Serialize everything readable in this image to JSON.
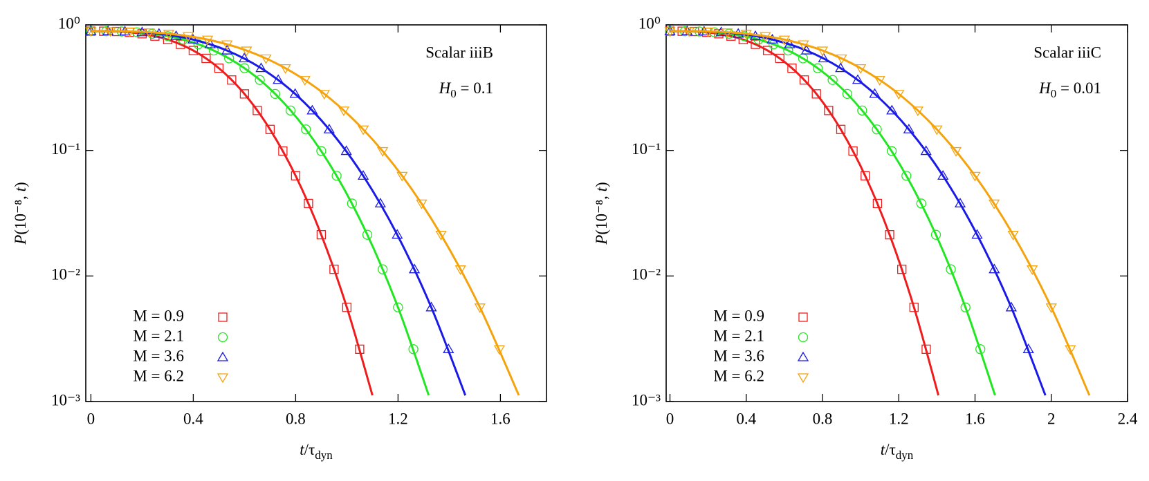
{
  "chart_data": [
    {
      "type": "scatter",
      "annotation": "Scalar iiiB",
      "annotation2": [
        "H",
        "0",
        " = 0.1"
      ],
      "xlabel": [
        "t",
        "/τ",
        "dyn"
      ],
      "ylabel": [
        "P",
        "(10⁻⁸, ",
        "t",
        ")"
      ],
      "xlim": [
        -0.02,
        1.78
      ],
      "ylim": [
        0.001,
        1
      ],
      "log_y": true,
      "legend": "lower left",
      "xticks": [
        0,
        0.4,
        0.8,
        1.2,
        1.6
      ],
      "yticks": [
        {
          "value": 1,
          "label": "10⁰"
        },
        {
          "value": 0.1,
          "label": "10⁻¹"
        },
        {
          "value": 0.01,
          "label": "10⁻²"
        },
        {
          "value": 0.001,
          "label": "10⁻³"
        }
      ],
      "series": [
        {
          "name": "M = 0.9",
          "color": "#ee1c1c",
          "marker": "square",
          "x": [
            0,
            0.05,
            0.1,
            0.15,
            0.2,
            0.25,
            0.3,
            0.35,
            0.4,
            0.45,
            0.5,
            0.55,
            0.6,
            0.65,
            0.7,
            0.75,
            0.8,
            0.85,
            0.9,
            0.95,
            1.0,
            1.05
          ],
          "values": [
            0.891,
            0.89,
            0.886,
            0.873,
            0.85,
            0.814,
            0.764,
            0.7,
            0.625,
            0.541,
            0.452,
            0.364,
            0.282,
            0.208,
            0.147,
            0.0989,
            0.0628,
            0.0378,
            0.0213,
            0.0113,
            0.00562,
            0.00261
          ],
          "fit_x": [
            0,
            0.1,
            0.2,
            0.3,
            0.4,
            0.5,
            0.6,
            0.7,
            0.8,
            0.9,
            1.0,
            1.1
          ],
          "fit_values": [
            0.891,
            0.886,
            0.85,
            0.764,
            0.625,
            0.452,
            0.282,
            0.147,
            0.0628,
            0.0213,
            0.00562,
            0.00112
          ]
        },
        {
          "name": "M = 2.1",
          "color": "#22e622",
          "marker": "circle",
          "x": [
            0,
            0.06,
            0.12,
            0.18,
            0.24,
            0.3,
            0.36,
            0.42,
            0.48,
            0.54,
            0.6,
            0.66,
            0.72,
            0.78,
            0.84,
            0.9,
            0.96,
            1.02,
            1.08,
            1.14,
            1.2,
            1.26
          ],
          "values": [
            0.891,
            0.89,
            0.886,
            0.873,
            0.85,
            0.814,
            0.764,
            0.7,
            0.625,
            0.541,
            0.452,
            0.364,
            0.282,
            0.208,
            0.147,
            0.0989,
            0.0628,
            0.0378,
            0.0213,
            0.0113,
            0.00562,
            0.00261
          ],
          "fit_x": [
            0,
            0.12,
            0.24,
            0.36,
            0.48,
            0.6,
            0.72,
            0.84,
            0.96,
            1.08,
            1.2,
            1.32
          ],
          "fit_values": [
            0.891,
            0.886,
            0.85,
            0.764,
            0.625,
            0.452,
            0.282,
            0.147,
            0.0628,
            0.0213,
            0.00562,
            0.00112
          ]
        },
        {
          "name": "M = 3.6",
          "color": "#1a1ae6",
          "marker": "triangle-up",
          "x": [
            0,
            0.067,
            0.133,
            0.2,
            0.266,
            0.333,
            0.399,
            0.466,
            0.532,
            0.599,
            0.665,
            0.732,
            0.798,
            0.865,
            0.931,
            0.998,
            1.064,
            1.131,
            1.197,
            1.264,
            1.33,
            1.397
          ],
          "values": [
            0.891,
            0.89,
            0.886,
            0.873,
            0.85,
            0.814,
            0.764,
            0.7,
            0.625,
            0.541,
            0.452,
            0.364,
            0.282,
            0.208,
            0.147,
            0.0989,
            0.0628,
            0.0378,
            0.0213,
            0.0113,
            0.00562,
            0.00261
          ],
          "fit_x": [
            0,
            0.133,
            0.266,
            0.399,
            0.532,
            0.665,
            0.798,
            0.931,
            1.064,
            1.197,
            1.33,
            1.463
          ],
          "fit_values": [
            0.891,
            0.886,
            0.85,
            0.764,
            0.625,
            0.452,
            0.282,
            0.147,
            0.0628,
            0.0213,
            0.00562,
            0.00112
          ]
        },
        {
          "name": "M = 6.2",
          "color": "#f4a30c",
          "marker": "triangle-down",
          "x": [
            0,
            0.076,
            0.152,
            0.228,
            0.304,
            0.38,
            0.456,
            0.532,
            0.608,
            0.684,
            0.76,
            0.836,
            0.912,
            0.988,
            1.064,
            1.14,
            1.216,
            1.292,
            1.368,
            1.444,
            1.52,
            1.596
          ],
          "values": [
            0.891,
            0.89,
            0.886,
            0.873,
            0.85,
            0.814,
            0.764,
            0.7,
            0.625,
            0.541,
            0.452,
            0.364,
            0.282,
            0.208,
            0.147,
            0.0989,
            0.0628,
            0.0378,
            0.0213,
            0.0113,
            0.00562,
            0.00261
          ],
          "fit_x": [
            0,
            0.152,
            0.304,
            0.456,
            0.608,
            0.76,
            0.912,
            1.064,
            1.216,
            1.368,
            1.52,
            1.672
          ],
          "fit_values": [
            0.891,
            0.886,
            0.85,
            0.764,
            0.625,
            0.452,
            0.282,
            0.147,
            0.0628,
            0.0213,
            0.00562,
            0.00112
          ]
        }
      ]
    },
    {
      "type": "scatter",
      "annotation": "Scalar iiiC",
      "annotation2": [
        "H",
        "0",
        " = 0.01"
      ],
      "xlabel": [
        "t",
        "/τ",
        "dyn"
      ],
      "ylabel": [
        "P",
        "(10⁻⁸, ",
        "t",
        ")"
      ],
      "xlim": [
        -0.02,
        2.4
      ],
      "ylim": [
        0.001,
        1
      ],
      "log_y": true,
      "legend": "lower left",
      "xticks": [
        0,
        0.4,
        0.8,
        1.2,
        1.6,
        2,
        2.4
      ],
      "yticks": [
        {
          "value": 1,
          "label": "10⁰"
        },
        {
          "value": 0.1,
          "label": "10⁻¹"
        },
        {
          "value": 0.01,
          "label": "10⁻²"
        },
        {
          "value": 0.001,
          "label": "10⁻³"
        }
      ],
      "series": [
        {
          "name": "M = 0.9",
          "color": "#ee1c1c",
          "marker": "square",
          "x": [
            0,
            0.064,
            0.128,
            0.192,
            0.256,
            0.32,
            0.384,
            0.448,
            0.512,
            0.576,
            0.64,
            0.704,
            0.768,
            0.832,
            0.896,
            0.96,
            1.024,
            1.088,
            1.152,
            1.216,
            1.28,
            1.344
          ],
          "values": [
            0.891,
            0.89,
            0.886,
            0.873,
            0.85,
            0.814,
            0.764,
            0.7,
            0.625,
            0.541,
            0.452,
            0.364,
            0.282,
            0.208,
            0.147,
            0.0989,
            0.0628,
            0.0378,
            0.0213,
            0.0113,
            0.00562,
            0.00261
          ],
          "fit_x": [
            0,
            0.128,
            0.256,
            0.384,
            0.512,
            0.64,
            0.768,
            0.896,
            1.024,
            1.152,
            1.28,
            1.408
          ],
          "fit_values": [
            0.891,
            0.886,
            0.85,
            0.764,
            0.625,
            0.452,
            0.282,
            0.147,
            0.0628,
            0.0213,
            0.00562,
            0.00112
          ]
        },
        {
          "name": "M = 2.1",
          "color": "#22e622",
          "marker": "circle",
          "x": [
            0,
            0.078,
            0.155,
            0.233,
            0.31,
            0.388,
            0.465,
            0.543,
            0.62,
            0.698,
            0.775,
            0.853,
            0.93,
            1.008,
            1.085,
            1.163,
            1.24,
            1.318,
            1.395,
            1.473,
            1.55,
            1.628
          ],
          "values": [
            0.891,
            0.89,
            0.886,
            0.873,
            0.85,
            0.814,
            0.764,
            0.7,
            0.625,
            0.541,
            0.452,
            0.364,
            0.282,
            0.208,
            0.147,
            0.0989,
            0.0628,
            0.0378,
            0.0213,
            0.0113,
            0.00562,
            0.00261
          ],
          "fit_x": [
            0,
            0.155,
            0.31,
            0.465,
            0.62,
            0.775,
            0.93,
            1.085,
            1.24,
            1.395,
            1.55,
            1.705
          ],
          "fit_values": [
            0.891,
            0.886,
            0.85,
            0.764,
            0.625,
            0.452,
            0.282,
            0.147,
            0.0628,
            0.0213,
            0.00562,
            0.00112
          ]
        },
        {
          "name": "M = 3.6",
          "color": "#1a1ae6",
          "marker": "triangle-up",
          "x": [
            0,
            0.09,
            0.179,
            0.269,
            0.358,
            0.448,
            0.537,
            0.627,
            0.716,
            0.806,
            0.895,
            0.985,
            1.074,
            1.164,
            1.253,
            1.343,
            1.432,
            1.522,
            1.611,
            1.701,
            1.79,
            1.88
          ],
          "values": [
            0.891,
            0.89,
            0.886,
            0.873,
            0.85,
            0.814,
            0.764,
            0.7,
            0.625,
            0.541,
            0.452,
            0.364,
            0.282,
            0.208,
            0.147,
            0.0989,
            0.0628,
            0.0378,
            0.0213,
            0.0113,
            0.00562,
            0.00261
          ],
          "fit_x": [
            0,
            0.179,
            0.358,
            0.537,
            0.716,
            0.895,
            1.074,
            1.253,
            1.432,
            1.611,
            1.79,
            1.969
          ],
          "fit_values": [
            0.891,
            0.886,
            0.85,
            0.764,
            0.625,
            0.452,
            0.282,
            0.147,
            0.0628,
            0.0213,
            0.00562,
            0.00112
          ]
        },
        {
          "name": "M = 6.2",
          "color": "#f4a30c",
          "marker": "triangle-down",
          "x": [
            0,
            0.1,
            0.2,
            0.3,
            0.4,
            0.5,
            0.6,
            0.7,
            0.8,
            0.9,
            1.0,
            1.1,
            1.2,
            1.3,
            1.4,
            1.5,
            1.6,
            1.7,
            1.8,
            1.9,
            2.0,
            2.1
          ],
          "values": [
            0.891,
            0.89,
            0.886,
            0.873,
            0.85,
            0.814,
            0.764,
            0.7,
            0.625,
            0.541,
            0.452,
            0.364,
            0.282,
            0.208,
            0.147,
            0.0989,
            0.0628,
            0.0378,
            0.0213,
            0.0113,
            0.00562,
            0.00261
          ],
          "fit_x": [
            0,
            0.2,
            0.4,
            0.6,
            0.8,
            1.0,
            1.2,
            1.4,
            1.6,
            1.8,
            2.0,
            2.2
          ],
          "fit_values": [
            0.891,
            0.886,
            0.85,
            0.764,
            0.625,
            0.452,
            0.282,
            0.147,
            0.0628,
            0.0213,
            0.00562,
            0.00112
          ]
        }
      ]
    }
  ]
}
